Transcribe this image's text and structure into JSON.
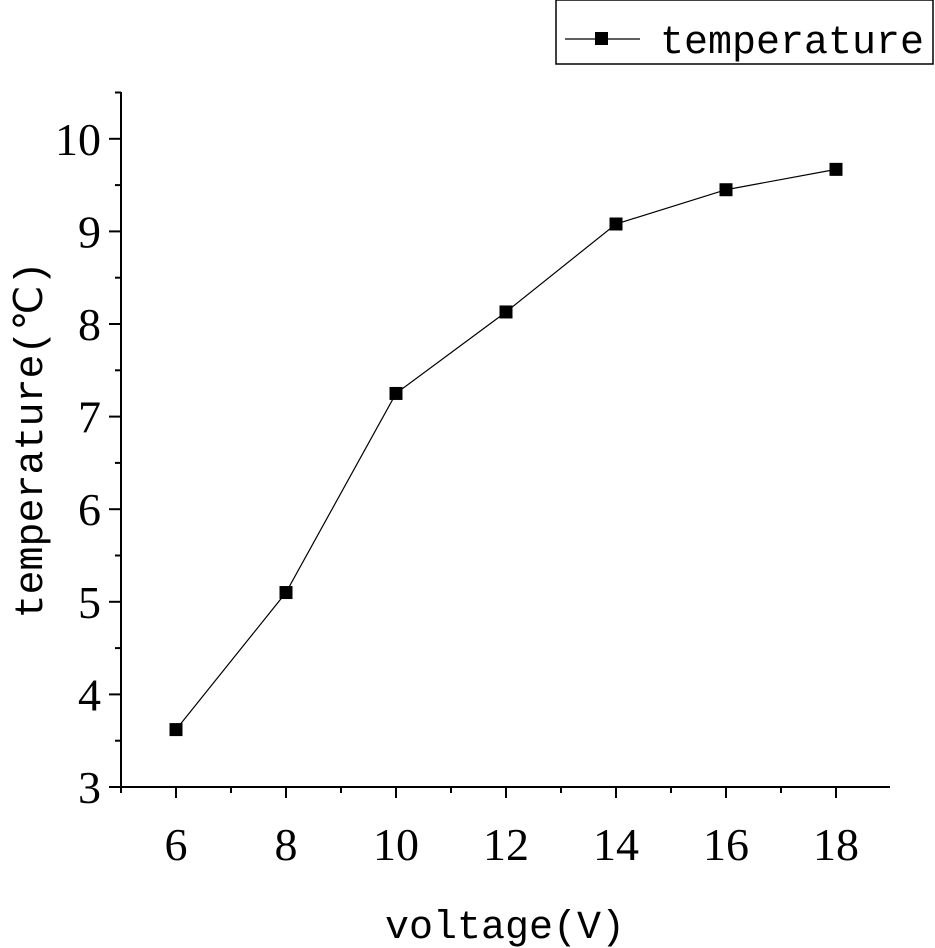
{
  "chart_data": {
    "type": "line",
    "title": "",
    "xlabel": "voltage(V)",
    "ylabel": "temperature(℃)",
    "xlim": [
      5,
      19
    ],
    "ylim": [
      3,
      10.5
    ],
    "x_ticks": [
      6,
      8,
      10,
      12,
      14,
      16,
      18
    ],
    "y_ticks": [
      3,
      4,
      5,
      6,
      7,
      8,
      9,
      10
    ],
    "grid": false,
    "legend_position": "top-right",
    "series": [
      {
        "name": "temperature",
        "marker": "square",
        "color": "#000000",
        "x": [
          6,
          8,
          10,
          12,
          14,
          16,
          18
        ],
        "y": [
          3.62,
          5.1,
          7.25,
          8.13,
          9.08,
          9.45,
          9.67
        ]
      }
    ]
  }
}
